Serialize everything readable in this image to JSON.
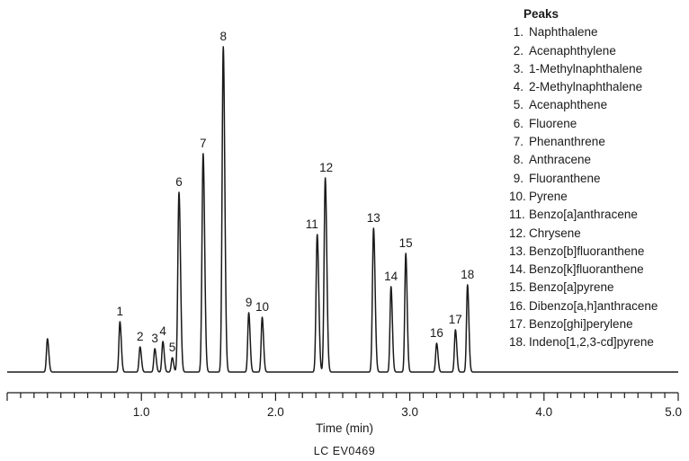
{
  "chart_data": {
    "type": "line",
    "xlabel": "Time (min)",
    "ylabel": "",
    "xlim": [
      0,
      5.0
    ],
    "x_tick_labels": [
      "1.0",
      "2.0",
      "3.0",
      "4.0",
      "5.0"
    ],
    "x_tick_values": [
      1.0,
      2.0,
      3.0,
      4.0,
      5.0
    ],
    "minor_tick_step": 0.1,
    "grid": false,
    "legend_title": "Peaks",
    "legend_position": "top-right",
    "baseline": 4,
    "series_color": "#1a1a1a",
    "peaks": [
      {
        "label": "1",
        "time": 0.84,
        "height": 56
      },
      {
        "label": "2",
        "time": 0.99,
        "height": 28
      },
      {
        "label": "3",
        "time": 1.1,
        "height": 26
      },
      {
        "label": "4",
        "time": 1.16,
        "height": 34
      },
      {
        "label": "5",
        "time": 1.23,
        "height": 16
      },
      {
        "label": "6",
        "time": 1.28,
        "height": 200
      },
      {
        "label": "7",
        "time": 1.46,
        "height": 243
      },
      {
        "label": "8",
        "time": 1.61,
        "height": 362
      },
      {
        "label": "9",
        "time": 1.8,
        "height": 66
      },
      {
        "label": "10",
        "time": 1.9,
        "height": 61
      },
      {
        "label": "11",
        "time": 2.31,
        "height": 153
      },
      {
        "label": "12",
        "time": 2.37,
        "height": 216
      },
      {
        "label": "13",
        "time": 2.73,
        "height": 160
      },
      {
        "label": "14",
        "time": 2.86,
        "height": 95
      },
      {
        "label": "15",
        "time": 2.97,
        "height": 132
      },
      {
        "label": "16",
        "time": 3.2,
        "height": 32
      },
      {
        "label": "17",
        "time": 3.34,
        "height": 47
      },
      {
        "label": "18",
        "time": 3.43,
        "height": 97
      }
    ],
    "void_peak": {
      "time": 0.3,
      "height": 37
    }
  },
  "legend": {
    "title": "Peaks",
    "items": [
      {
        "num": "1.",
        "name": "Naphthalene"
      },
      {
        "num": "2.",
        "name": "Acenaphthylene"
      },
      {
        "num": "3.",
        "name": "1-Methylnaphthalene"
      },
      {
        "num": "4.",
        "name": "2-Methylnaphthalene"
      },
      {
        "num": "5.",
        "name": "Acenaphthene"
      },
      {
        "num": "6.",
        "name": "Fluorene"
      },
      {
        "num": "7.",
        "name": "Phenanthrene"
      },
      {
        "num": "8.",
        "name": "Anthracene"
      },
      {
        "num": "9.",
        "name": "Fluoranthene"
      },
      {
        "num": "10.",
        "name": "Pyrene"
      },
      {
        "num": "11.",
        "name": "Benzo[a]anthracene"
      },
      {
        "num": "12.",
        "name": "Chrysene"
      },
      {
        "num": "13.",
        "name": "Benzo[b]fluoranthene"
      },
      {
        "num": "14.",
        "name": "Benzo[k]fluoranthene"
      },
      {
        "num": "15.",
        "name": "Benzo[a]pyrene"
      },
      {
        "num": "16.",
        "name": "Dibenzo[a,h]anthracene"
      },
      {
        "num": "17.",
        "name": "Benzo[ghi]perylene"
      },
      {
        "num": "18.",
        "name": "Indeno[1,2,3-cd]pyrene"
      }
    ]
  },
  "footer": {
    "code": "LC  EV0469"
  }
}
